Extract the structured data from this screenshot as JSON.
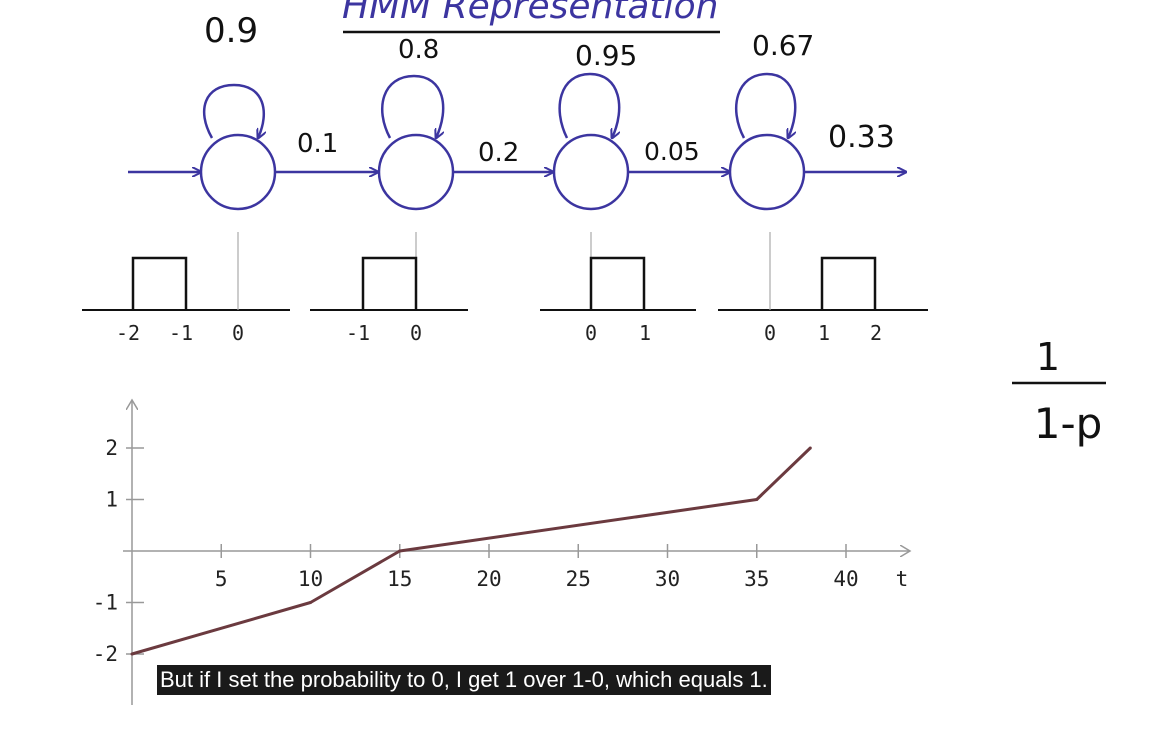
{
  "title": "HMM Representation",
  "colors": {
    "hand": "#3c35a0",
    "plot_line": "#6b3a3f",
    "axis": "#999999",
    "ink": "#111111"
  },
  "states": [
    {
      "self_prob": "0.9"
    },
    {
      "self_prob": "0.8"
    },
    {
      "self_prob": "0.95"
    },
    {
      "self_prob": "0.67"
    }
  ],
  "transitions": [
    "0.1",
    "0.2",
    "0.05",
    "0.33"
  ],
  "pulses": [
    {
      "ticks": [
        "-2",
        "-1",
        "0"
      ]
    },
    {
      "ticks": [
        "-1",
        "0"
      ]
    },
    {
      "ticks": [
        "0",
        "1"
      ]
    },
    {
      "ticks": [
        "0",
        "1",
        "2"
      ]
    }
  ],
  "formula": {
    "numerator": "1",
    "denominator": "1-p"
  },
  "chart_data": {
    "type": "line",
    "x": [
      0,
      10,
      15,
      35,
      38
    ],
    "y": [
      -2,
      -1,
      0,
      1,
      2
    ],
    "x_ticks": [
      "5",
      "10",
      "15",
      "20",
      "25",
      "30",
      "35",
      "40"
    ],
    "y_ticks": [
      "2",
      "1",
      "-1",
      "-2"
    ],
    "xlabel": "t",
    "ylabel": "",
    "xlim": [
      0,
      42
    ],
    "ylim": [
      -2.5,
      2.5
    ],
    "grid": false
  },
  "caption": "But if I set the probability to 0, I get 1 over 1-0, which equals 1."
}
